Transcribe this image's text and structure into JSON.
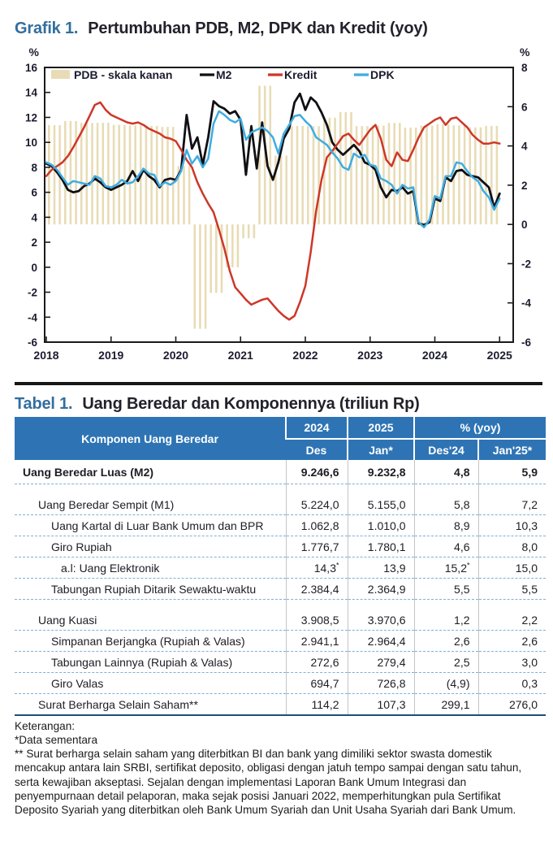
{
  "grafik": {
    "label": "Grafik 1.",
    "title": "Pertumbuhan PDB, M2, DPK dan Kredit (yoy)"
  },
  "chart_data": {
    "type": "combo",
    "title": "Pertumbuhan PDB, M2, DPK dan Kredit (yoy)",
    "x_years": [
      2018,
      2019,
      2020,
      2021,
      2022,
      2023,
      2024,
      2025
    ],
    "left_axis": {
      "unit": "%",
      "min": -6,
      "max": 16,
      "tick_step": 2
    },
    "right_axis": {
      "unit": "%",
      "min": -6,
      "max": 8,
      "tick_step": 2
    },
    "bar_series": {
      "name": "PDB - skala kanan",
      "axis": "right",
      "frequency": "quarterly",
      "start": "2018Q1",
      "color": "#E8DCB6",
      "values": [
        5.06,
        5.27,
        5.17,
        5.18,
        5.07,
        5.05,
        5.02,
        4.97,
        2.97,
        -5.32,
        -3.49,
        -2.19,
        -0.71,
        7.07,
        3.51,
        5.02,
        5.01,
        5.44,
        5.72,
        5.01,
        5.03,
        5.17,
        4.94,
        5.04,
        5.11,
        5.05,
        4.95,
        5.02
      ]
    },
    "line_series": [
      {
        "name": "M2",
        "axis": "left",
        "frequency": "monthly",
        "start": "2018-01",
        "color": "#101014",
        "width": 2.8,
        "values": [
          8.3,
          8.1,
          7.6,
          7.0,
          6.2,
          6.0,
          6.1,
          6.5,
          6.7,
          7.1,
          6.8,
          6.4,
          6.2,
          6.4,
          6.6,
          6.9,
          7.7,
          6.9,
          7.8,
          7.3,
          7.0,
          6.4,
          7.0,
          7.1,
          7.0,
          7.8,
          12.2,
          9.5,
          10.4,
          8.2,
          10.4,
          13.3,
          12.9,
          12.7,
          12.3,
          12.5,
          11.8,
          7.4,
          11.3,
          7.9,
          11.6,
          8.1,
          7.0,
          8.4,
          10.3,
          11.1,
          13.2,
          13.9,
          12.6,
          13.6,
          13.2,
          12.4,
          11.4,
          10.0,
          9.4,
          9.0,
          9.4,
          9.8,
          9.3,
          8.4,
          8.2,
          7.8,
          6.4,
          5.6,
          6.2,
          6.1,
          6.4,
          5.9,
          6.1,
          3.5,
          3.4,
          3.6,
          5.5,
          5.3,
          7.2,
          6.9,
          7.7,
          7.8,
          7.4,
          7.3,
          7.2,
          6.8,
          6.4,
          4.8,
          5.9
        ]
      },
      {
        "name": "Kredit",
        "axis": "left",
        "frequency": "monthly",
        "start": "2018-01",
        "color": "#CD3728",
        "width": 2.5,
        "values": [
          7.3,
          7.8,
          8.1,
          8.4,
          8.9,
          9.6,
          10.4,
          11.2,
          12.1,
          13.0,
          13.2,
          12.6,
          12.2,
          12.0,
          11.8,
          11.6,
          11.5,
          11.6,
          11.4,
          11.1,
          10.9,
          10.7,
          10.4,
          10.3,
          10.1,
          9.4,
          8.6,
          8.0,
          6.8,
          5.9,
          5.1,
          4.4,
          3.0,
          1.5,
          -0.3,
          -1.6,
          -2.1,
          -2.6,
          -3.0,
          -2.8,
          -2.6,
          -2.5,
          -3.0,
          -3.5,
          -3.9,
          -4.2,
          -3.9,
          -2.8,
          -1.5,
          1.2,
          4.5,
          7.0,
          8.8,
          9.3,
          9.9,
          10.5,
          10.7,
          10.2,
          9.8,
          10.4,
          11.0,
          11.4,
          10.3,
          8.6,
          8.1,
          9.2,
          8.6,
          8.5,
          9.4,
          10.4,
          11.2,
          11.5,
          11.8,
          12.0,
          11.4,
          11.9,
          12.0,
          11.6,
          11.2,
          10.6,
          10.2,
          9.9,
          9.9,
          10.0,
          9.9
        ]
      },
      {
        "name": "DPK",
        "axis": "left",
        "frequency": "monthly",
        "start": "2018-01",
        "color": "#3FACE2",
        "width": 2.5,
        "values": [
          8.4,
          8.2,
          7.8,
          7.2,
          6.6,
          6.9,
          6.8,
          6.7,
          6.6,
          7.3,
          7.1,
          6.5,
          6.4,
          6.6,
          7.0,
          6.7,
          6.8,
          7.3,
          7.9,
          7.5,
          7.4,
          6.5,
          6.8,
          6.6,
          6.9,
          7.7,
          9.4,
          8.3,
          8.9,
          8.0,
          8.7,
          11.5,
          12.5,
          12.2,
          11.8,
          11.6,
          11.9,
          10.2,
          10.8,
          11.0,
          11.2,
          10.9,
          10.4,
          9.1,
          10.7,
          11.4,
          12.1,
          12.2,
          11.7,
          11.3,
          10.4,
          10.1,
          9.8,
          9.2,
          8.7,
          8.0,
          7.8,
          9.1,
          8.8,
          9.0,
          8.2,
          8.1,
          7.1,
          6.9,
          6.6,
          5.9,
          6.6,
          6.3,
          6.4,
          3.6,
          3.2,
          3.8,
          5.7,
          5.5,
          7.3,
          7.3,
          8.4,
          8.3,
          7.7,
          7.2,
          6.9,
          6.1,
          5.6,
          4.6,
          5.5
        ]
      }
    ],
    "legend": [
      {
        "label": "PDB - skala kanan",
        "swatch": "bar",
        "color": "#E8DCB6"
      },
      {
        "label": "M2",
        "swatch": "line",
        "color": "#101014"
      },
      {
        "label": "Kredit",
        "swatch": "line",
        "color": "#CD3728"
      },
      {
        "label": "DPK",
        "swatch": "line",
        "color": "#3FACE2"
      }
    ]
  },
  "tabel": {
    "label": "Tabel 1.",
    "title": "Uang Beredar dan Komponennya (triliun Rp)",
    "header": {
      "col1": "Komponen Uang Beredar",
      "groups": [
        "2024",
        "2025",
        "% (yoy)"
      ],
      "sub": [
        "Des",
        "Jan*",
        "Des'24",
        "Jan'25*"
      ]
    },
    "sup_marker": "*",
    "rows": [
      {
        "name": "Uang Beredar Luas (M2)",
        "indent": 0,
        "bold": true,
        "values": [
          "9.246,6",
          "9.232,8",
          "4,8",
          "5,9"
        ],
        "asterisk_cols": []
      },
      {
        "spacer": true
      },
      {
        "name": "Uang Beredar Sempit (M1)",
        "indent": 1,
        "bold": false,
        "values": [
          "5.224,0",
          "5.155,0",
          "5,8",
          "7,2"
        ],
        "asterisk_cols": []
      },
      {
        "name": "Uang Kartal di Luar Bank Umum dan BPR",
        "indent": 2,
        "bold": false,
        "values": [
          "1.062,8",
          "1.010,0",
          "8,9",
          "10,3"
        ],
        "asterisk_cols": []
      },
      {
        "name": "Giro Rupiah",
        "indent": 2,
        "bold": false,
        "values": [
          "1.776,7",
          "1.780,1",
          "4,6",
          "8,0"
        ],
        "asterisk_cols": []
      },
      {
        "name": "a.l: Uang Elektronik",
        "indent": 3,
        "bold": false,
        "values": [
          "14,3",
          "13,9",
          "15,2",
          "15,0"
        ],
        "asterisk_cols": [
          0,
          2
        ]
      },
      {
        "name": "Tabungan Rupiah Ditarik Sewaktu-waktu",
        "indent": 2,
        "bold": false,
        "values": [
          "2.384,4",
          "2.364,9",
          "5,5",
          "5,5"
        ],
        "asterisk_cols": []
      },
      {
        "spacer": true
      },
      {
        "name": "Uang Kuasi",
        "indent": 1,
        "bold": false,
        "values": [
          "3.908,5",
          "3.970,6",
          "1,2",
          "2,2"
        ],
        "asterisk_cols": []
      },
      {
        "name": "Simpanan Berjangka (Rupiah & Valas)",
        "indent": 2,
        "bold": false,
        "values": [
          "2.941,1",
          "2.964,4",
          "2,6",
          "2,6"
        ],
        "asterisk_cols": []
      },
      {
        "name": "Tabungan Lainnya (Rupiah & Valas)",
        "indent": 2,
        "bold": false,
        "values": [
          "272,6",
          "279,4",
          "2,5",
          "3,0"
        ],
        "asterisk_cols": []
      },
      {
        "name": "Giro Valas",
        "indent": 2,
        "bold": false,
        "values": [
          "694,7",
          "726,8",
          "(4,9)",
          "0,3"
        ],
        "asterisk_cols": []
      },
      {
        "name": "Surat Berharga Selain Saham**",
        "indent": 1,
        "bold": false,
        "values": [
          "114,2",
          "107,3",
          "299,1",
          "276,0"
        ],
        "asterisk_cols": []
      }
    ]
  },
  "notes": {
    "keterangan_label": "Keterangan:",
    "note1": "*Data sementara",
    "note2": "** Surat berharga selain saham yang diterbitkan BI dan bank yang dimiliki sektor swasta domestik mencakup antara lain SRBI, sertifikat deposito, obligasi dengan jatuh tempo sampai dengan satu tahun, serta kewajiban akseptasi. Sejalan dengan implementasi Laporan Bank Umum Integrasi dan penyempurnaan detail pelaporan, maka sejak posisi Januari 2022, memperhitungkan pula Sertifikat Deposito Syariah yang diterbitkan oleh Bank Umum Syariah dan Unit Usaha Syariah dari Bank Umum."
  }
}
